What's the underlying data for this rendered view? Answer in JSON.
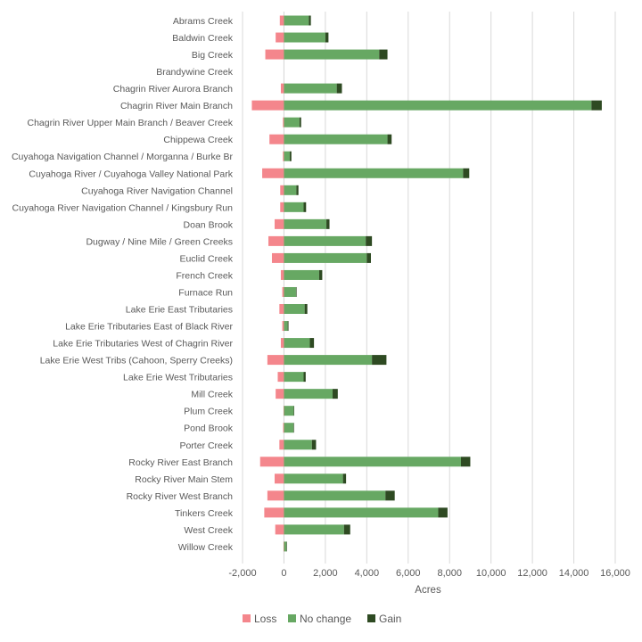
{
  "chart_data": {
    "type": "bar",
    "orientation": "horizontal",
    "stacked": true,
    "title": "",
    "xlabel": "Acres",
    "ylabel": "",
    "xlim": [
      -2000,
      16000
    ],
    "xticks": [
      "-2,000",
      "0",
      "2,000",
      "4,000",
      "6,000",
      "8,000",
      "10,000",
      "12,000",
      "14,000",
      "16,000"
    ],
    "xtick_values": [
      -2000,
      0,
      2000,
      4000,
      6000,
      8000,
      10000,
      12000,
      14000,
      16000
    ],
    "grid": true,
    "legend_position": "bottom",
    "categories": [
      "Abrams Creek",
      "Baldwin Creek",
      "Big Creek",
      "Brandywine Creek",
      "Chagrin River Aurora Branch",
      "Chagrin River Main Branch",
      "Chagrin River Upper Main Branch / Beaver Creek",
      "Chippewa Creek",
      "Cuyahoga Navigation Channel / Morganna / Burke Br",
      "Cuyahoga River / Cuyahoga Valley National Park",
      "Cuyahoga River Navigation Channel",
      "Cuyahoga River Navigation Channel / Kingsbury Run",
      "Doan Brook",
      "Dugway / Nine Mile / Green Creeks",
      "Euclid Creek",
      "French Creek",
      "Furnace Run",
      "Lake Erie East Tributaries",
      "Lake Erie Tributaries East of Black River",
      "Lake Erie Tributaries West of Chagrin River",
      "Lake Erie West Tribs (Cahoon, Sperry Creeks)",
      "Lake Erie West Tributaries",
      "Mill Creek",
      "Plum Creek",
      "Pond Brook",
      "Porter Creek",
      "Rocky River East Branch",
      "Rocky River Main Stem",
      "Rocky River West Branch",
      "Tinkers Creek",
      "West Creek",
      "Willow Creek"
    ],
    "series": [
      {
        "name": "Loss",
        "color": "#f4868c",
        "values": [
          -200,
          -400,
          -900,
          0,
          -150,
          -1550,
          -50,
          -700,
          -50,
          -1050,
          -180,
          -180,
          -450,
          -750,
          -580,
          -150,
          -80,
          -220,
          -80,
          -150,
          -800,
          -300,
          -400,
          -20,
          -40,
          -220,
          -1150,
          -450,
          -800,
          -950,
          -420,
          -20
        ]
      },
      {
        "name": "No change",
        "color": "#67a863",
        "values": [
          1200,
          2000,
          4600,
          0,
          2550,
          14850,
          750,
          5000,
          280,
          8650,
          600,
          950,
          2050,
          3950,
          4000,
          1700,
          580,
          1000,
          180,
          1250,
          4250,
          950,
          2350,
          470,
          460,
          1350,
          8550,
          2850,
          4900,
          7450,
          2900,
          120
        ]
      },
      {
        "name": "Gain",
        "color": "#2e4a22",
        "values": [
          100,
          150,
          400,
          0,
          250,
          500,
          80,
          200,
          80,
          300,
          100,
          120,
          150,
          300,
          200,
          150,
          30,
          130,
          40,
          200,
          700,
          100,
          250,
          20,
          20,
          200,
          450,
          150,
          450,
          450,
          300,
          20
        ]
      }
    ]
  }
}
